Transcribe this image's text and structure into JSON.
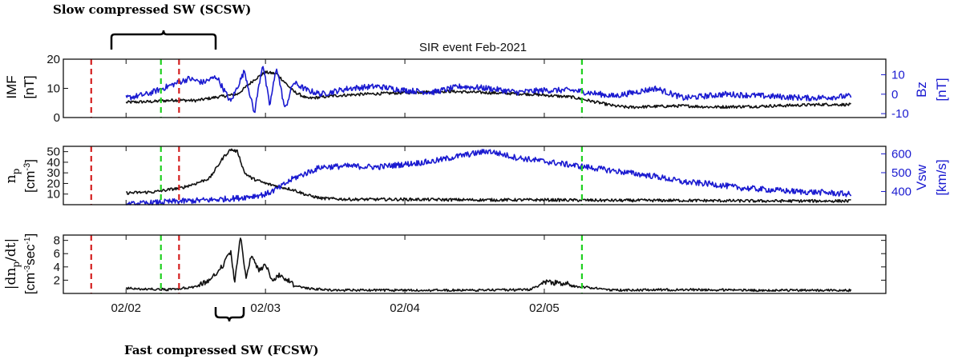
{
  "title": "SIR event Feb-2021",
  "annotations": {
    "top": "Slow compressed SW (SCSW)",
    "bottom": "Fast compressed SW (FCSW)"
  },
  "colors": {
    "black": "#111111",
    "blue": "#1a1ad0",
    "red": "#d42020",
    "green": "#20d020"
  },
  "chart_data": [
    {
      "type": "line",
      "panel": "IMF / Bz",
      "ylabel_left": "IMF",
      "ylabel_left_unit": "[nT]",
      "ylabel_right": "Bz",
      "ylabel_right_unit": "[nT]",
      "ylim_left": [
        0,
        20
      ],
      "yticks_left": [
        "0",
        "10",
        "20"
      ],
      "ylim_right": [
        -12,
        18
      ],
      "yticks_right": [
        "-10",
        "0",
        "10"
      ],
      "series": [
        {
          "axis": "left",
          "color": "black",
          "x": [
            0.0,
            0.2,
            0.35,
            0.5,
            0.65,
            0.8,
            0.92,
            1.0,
            1.08,
            1.2,
            1.3,
            1.4,
            1.5,
            1.7,
            2.0,
            2.3,
            2.6,
            2.9,
            3.2,
            3.4,
            3.5,
            3.6,
            3.8,
            4.0,
            4.2,
            4.5,
            4.8,
            5.0,
            5.2
          ],
          "y": [
            5.2,
            5.5,
            6.0,
            5.8,
            7.0,
            8.0,
            13.0,
            15.5,
            15.0,
            9.0,
            6.5,
            7.0,
            7.5,
            8.0,
            8.5,
            9.0,
            8.5,
            8.0,
            7.0,
            5.0,
            4.0,
            3.5,
            3.8,
            4.0,
            3.6,
            3.8,
            4.2,
            4.5,
            4.4
          ]
        },
        {
          "axis": "right",
          "color": "blue",
          "x": [
            0.0,
            0.15,
            0.3,
            0.45,
            0.55,
            0.65,
            0.75,
            0.85,
            0.92,
            0.98,
            1.03,
            1.08,
            1.14,
            1.2,
            1.3,
            1.4,
            1.6,
            1.8,
            2.0,
            2.2,
            2.4,
            2.6,
            2.8,
            3.0,
            3.2,
            3.5,
            3.8,
            4.0,
            4.3,
            4.6,
            4.9,
            5.2
          ],
          "y": [
            -2,
            0,
            4,
            8,
            6,
            9,
            -4,
            12,
            -10,
            16,
            -6,
            14,
            -8,
            6,
            2,
            0,
            3,
            4,
            2,
            1,
            4,
            3,
            1,
            2,
            2,
            -1,
            3,
            -2,
            0,
            -1,
            -2,
            -1
          ]
        }
      ]
    },
    {
      "type": "line",
      "panel": "np / Vsw",
      "ylabel_left_base": "n",
      "ylabel_left_sub": "p",
      "ylabel_left_unit": "[cm",
      "ylabel_left_unit_sup": "-3",
      "ylabel_left_unit_close": "]",
      "ylabel_right": "Vsw",
      "ylabel_right_unit": "[km/s]",
      "ylim_left": [
        0,
        55
      ],
      "yticks_left": [
        "10",
        "20",
        "30",
        "40",
        "50"
      ],
      "ylim_right": [
        330,
        640
      ],
      "yticks_right": [
        "400",
        "500",
        "600"
      ],
      "series": [
        {
          "axis": "left",
          "color": "black",
          "x": [
            0.0,
            0.2,
            0.4,
            0.5,
            0.6,
            0.7,
            0.75,
            0.8,
            0.85,
            0.9,
            1.0,
            1.1,
            1.2,
            1.3,
            1.4,
            1.6,
            2.0,
            2.5,
            3.0,
            3.5,
            4.0,
            4.5,
            5.0,
            5.2
          ],
          "y": [
            11,
            12,
            16,
            20,
            25,
            45,
            52,
            50,
            30,
            25,
            20,
            17,
            14,
            9,
            6,
            5,
            5,
            4.5,
            4.5,
            4,
            4,
            3.5,
            3.5,
            3.5
          ]
        },
        {
          "axis": "right",
          "color": "blue",
          "x": [
            0.0,
            0.3,
            0.6,
            0.8,
            1.0,
            1.1,
            1.2,
            1.3,
            1.4,
            1.6,
            1.8,
            2.0,
            2.2,
            2.4,
            2.6,
            2.8,
            3.0,
            3.2,
            3.4,
            3.6,
            3.8,
            4.0,
            4.2,
            4.4,
            4.6,
            4.8,
            5.0,
            5.2
          ],
          "y": [
            330,
            345,
            355,
            365,
            385,
            420,
            470,
            500,
            530,
            535,
            530,
            545,
            560,
            590,
            615,
            580,
            560,
            540,
            520,
            500,
            480,
            450,
            440,
            420,
            410,
            400,
            395,
            385
          ]
        }
      ]
    },
    {
      "type": "line",
      "panel": "|dnp/dt|",
      "ylabel_left": "|dn",
      "ylabel_left_sub": "p",
      "ylabel_left_close": "/dt|",
      "ylabel_left_unit": "[cm",
      "ylabel_left_unit_sup": "-3",
      "ylabel_left_unit_mid": "sec",
      "ylabel_left_unit_sup2": "-1",
      "ylabel_left_unit_close": "]",
      "ylim_left": [
        0,
        8.8
      ],
      "yticks_left": [
        "2",
        "4",
        "6",
        "8"
      ],
      "series": [
        {
          "axis": "left",
          "color": "black",
          "x": [
            0.0,
            0.3,
            0.5,
            0.6,
            0.7,
            0.75,
            0.78,
            0.82,
            0.86,
            0.9,
            0.95,
            1.0,
            1.05,
            1.1,
            1.2,
            1.3,
            1.5,
            2.0,
            2.5,
            2.9,
            3.0,
            3.5,
            4.0,
            4.5,
            5.0,
            5.2
          ],
          "y": [
            0.6,
            0.4,
            0.8,
            1.5,
            4.0,
            6.0,
            1.2,
            8.3,
            2.0,
            5.5,
            3.0,
            4.0,
            1.5,
            2.5,
            1.0,
            0.6,
            0.3,
            0.3,
            0.3,
            0.4,
            1.4,
            0.3,
            0.4,
            0.3,
            0.3,
            0.3
          ]
        }
      ]
    }
  ],
  "x_axis": {
    "range": [
      -0.45,
      5.45
    ],
    "ticks": [
      {
        "x": 0,
        "label": "02/02"
      },
      {
        "x": 1,
        "label": "02/03"
      },
      {
        "x": 2,
        "label": "02/04"
      },
      {
        "x": 3,
        "label": "02/05"
      }
    ]
  },
  "markers": [
    {
      "x": -0.25,
      "color": "red"
    },
    {
      "x": 0.25,
      "color": "green"
    },
    {
      "x": 0.38,
      "color": "red"
    },
    {
      "x": 3.27,
      "color": "green"
    }
  ]
}
